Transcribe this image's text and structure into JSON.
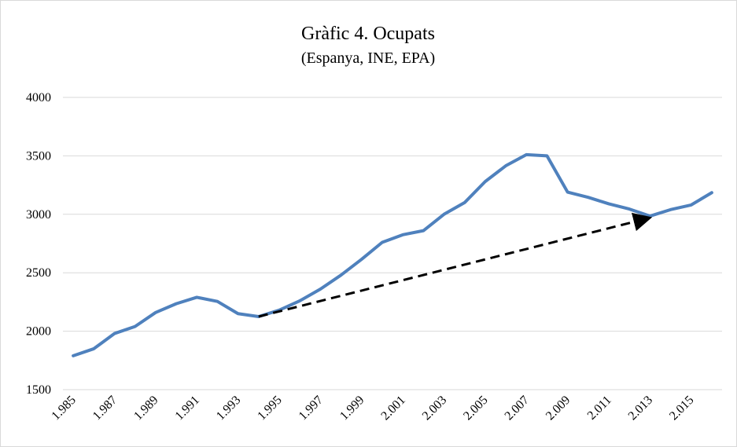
{
  "chart_data": {
    "type": "line",
    "title": "Gràfic 4. Ocupats",
    "subtitle": "(Espanya, INE, EPA)",
    "categories": [
      "1.985",
      null,
      "1.987",
      null,
      "1.989",
      null,
      "1.991",
      null,
      "1.993",
      null,
      "1.995",
      null,
      "1.997",
      null,
      "1.999",
      null,
      "2.001",
      null,
      "2.003",
      null,
      "2.005",
      null,
      "2.007",
      null,
      "2.009",
      null,
      "2.011",
      null,
      "2.013",
      null,
      "2.015",
      null
    ],
    "series": [
      {
        "name": "Ocupats",
        "color": "#4f81bd",
        "values": [
          1790,
          1850,
          1980,
          2040,
          2160,
          2235,
          2290,
          2255,
          2150,
          2125,
          2180,
          2260,
          2360,
          2480,
          2615,
          2760,
          2825,
          2860,
          3000,
          3100,
          3280,
          3415,
          3510,
          3500,
          3190,
          3145,
          3090,
          3045,
          2985,
          3040,
          3080,
          3185
        ]
      }
    ],
    "ylim": [
      1500,
      4000
    ],
    "yticks": [
      1500,
      2000,
      2500,
      3000,
      3500,
      4000
    ],
    "grid": true,
    "legend": false
  }
}
